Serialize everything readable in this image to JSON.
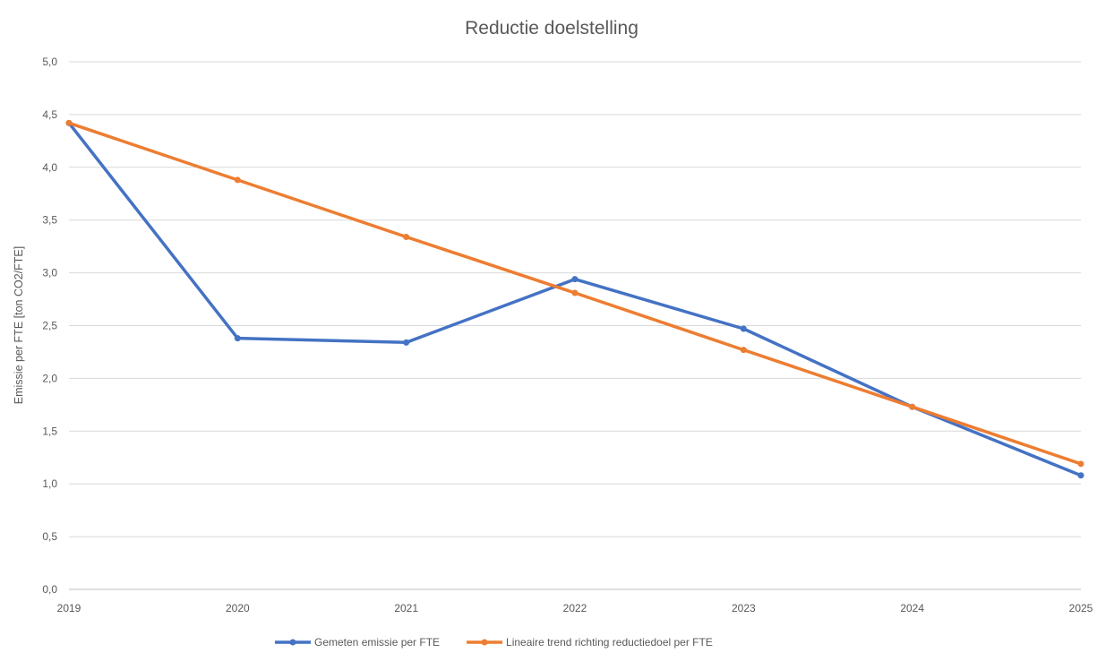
{
  "chart_data": {
    "type": "line",
    "title": "Reductie doelstelling",
    "xlabel": "",
    "ylabel": "Emissie per FTE [ton CO2/FTE]",
    "x": [
      "2019",
      "2020",
      "2021",
      "2022",
      "2023",
      "2024",
      "2025"
    ],
    "ylim": [
      0,
      5
    ],
    "yticks": [
      "0,0",
      "0,5",
      "1,0",
      "1,5",
      "2,0",
      "2,5",
      "3,0",
      "3,5",
      "4,0",
      "4,5",
      "5,0"
    ],
    "grid": true,
    "legend_position": "bottom",
    "series": [
      {
        "name": "Gemeten emissie per FTE",
        "color": "#4472c4",
        "values": [
          4.42,
          2.38,
          2.34,
          2.94,
          2.47,
          1.73,
          1.08
        ]
      },
      {
        "name": "Lineaire trend richting reductiedoel per FTE",
        "color": "#ed7d31",
        "values": [
          4.42,
          3.88,
          3.34,
          2.81,
          2.27,
          1.73,
          1.19
        ]
      }
    ]
  }
}
